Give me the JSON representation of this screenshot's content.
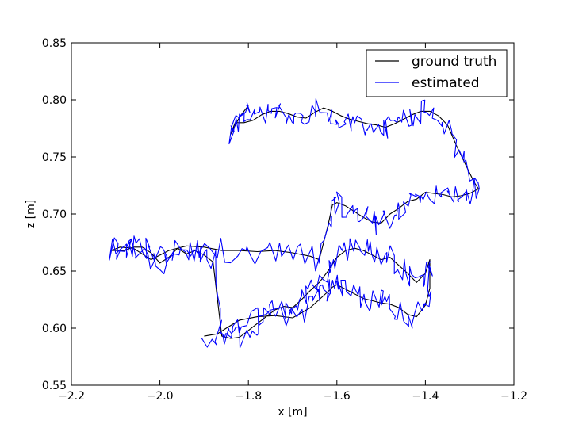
{
  "chart_data": {
    "type": "line",
    "title": "",
    "xlabel": "x [m]",
    "ylabel": "z [m]",
    "xlim": [
      -2.2,
      -1.2
    ],
    "ylim": [
      0.55,
      0.85
    ],
    "xticks": [
      -2.2,
      -2.0,
      -1.8,
      -1.6,
      -1.4,
      -1.2
    ],
    "yticks": [
      0.55,
      0.6,
      0.65,
      0.7,
      0.75,
      0.8,
      0.85
    ],
    "xtick_labels": [
      "−2.2",
      "−2.0",
      "−1.8",
      "−1.6",
      "−1.4",
      "−1.2"
    ],
    "ytick_labels": [
      "0.55",
      "0.60",
      "0.65",
      "0.70",
      "0.75",
      "0.80",
      "0.85"
    ],
    "grid": false,
    "legend_position": "top-right",
    "series": [
      {
        "name": "ground truth",
        "color": "#000000",
        "noise": 0,
        "x": [
          -1.9,
          -1.87,
          -1.85,
          -1.82,
          -1.78,
          -1.74,
          -1.7,
          -1.66,
          -1.64,
          -1.62,
          -1.61,
          -1.6,
          -1.58,
          -1.56,
          -1.54,
          -1.52,
          -1.5,
          -1.48,
          -1.46,
          -1.44,
          -1.42,
          -1.4,
          -1.39,
          -1.39,
          -1.4,
          -1.42,
          -1.44,
          -1.46,
          -1.48,
          -1.5,
          -1.52,
          -1.54,
          -1.56,
          -1.58,
          -1.6,
          -1.62,
          -1.64,
          -1.66,
          -1.68,
          -1.7,
          -1.72,
          -1.74,
          -1.76,
          -1.78,
          -1.8,
          -1.82,
          -1.84,
          -1.86,
          -1.88,
          -1.9,
          -1.92,
          -1.94,
          -1.96,
          -1.98,
          -2.0,
          -2.02,
          -2.04,
          -2.06,
          -2.08,
          -2.11,
          -2.09,
          -2.06,
          -2.02,
          -1.98,
          -1.94,
          -1.9,
          -1.86,
          -1.82,
          -1.78,
          -1.74,
          -1.7,
          -1.66,
          -1.64,
          -1.62,
          -1.61,
          -1.6,
          -1.58,
          -1.56,
          -1.54,
          -1.52,
          -1.5,
          -1.48,
          -1.46,
          -1.44,
          -1.42,
          -1.4,
          -1.38,
          -1.36,
          -1.34,
          -1.32,
          -1.3,
          -1.28,
          -1.29,
          -1.31,
          -1.33,
          -1.35,
          -1.37,
          -1.39,
          -1.41,
          -1.43,
          -1.45,
          -1.47,
          -1.49,
          -1.51,
          -1.53,
          -1.55,
          -1.57,
          -1.59,
          -1.61,
          -1.63,
          -1.65,
          -1.67,
          -1.69,
          -1.71,
          -1.73,
          -1.75,
          -1.77,
          -1.79,
          -1.81,
          -1.83,
          -1.84,
          -1.82,
          -1.8
        ],
        "y": [
          0.593,
          0.595,
          0.6,
          0.607,
          0.61,
          0.611,
          0.609,
          0.618,
          0.625,
          0.632,
          0.636,
          0.638,
          0.634,
          0.63,
          0.626,
          0.624,
          0.622,
          0.621,
          0.618,
          0.612,
          0.61,
          0.62,
          0.635,
          0.66,
          0.648,
          0.64,
          0.648,
          0.655,
          0.662,
          0.66,
          0.664,
          0.668,
          0.67,
          0.668,
          0.662,
          0.65,
          0.64,
          0.633,
          0.625,
          0.618,
          0.619,
          0.616,
          0.61,
          0.604,
          0.598,
          0.592,
          0.591,
          0.593,
          0.658,
          0.664,
          0.668,
          0.665,
          0.67,
          0.662,
          0.657,
          0.666,
          0.671,
          0.671,
          0.668,
          0.668,
          0.671,
          0.67,
          0.66,
          0.668,
          0.672,
          0.671,
          0.668,
          0.668,
          0.667,
          0.668,
          0.666,
          0.663,
          0.66,
          0.69,
          0.708,
          0.71,
          0.707,
          0.702,
          0.697,
          0.693,
          0.692,
          0.7,
          0.705,
          0.711,
          0.713,
          0.719,
          0.718,
          0.717,
          0.715,
          0.716,
          0.718,
          0.722,
          0.728,
          0.744,
          0.76,
          0.778,
          0.786,
          0.79,
          0.79,
          0.787,
          0.783,
          0.779,
          0.776,
          0.778,
          0.779,
          0.781,
          0.783,
          0.786,
          0.79,
          0.793,
          0.789,
          0.784,
          0.785,
          0.788,
          0.79,
          0.79,
          0.787,
          0.782,
          0.78,
          0.78,
          0.77,
          0.785,
          0.795
        ]
      },
      {
        "name": "estimated",
        "color": "#0000ff",
        "noise": 1,
        "x": [
          -1.9,
          -1.87,
          -1.85,
          -1.82,
          -1.78,
          -1.74,
          -1.7,
          -1.66,
          -1.64,
          -1.62,
          -1.61,
          -1.6,
          -1.58,
          -1.56,
          -1.54,
          -1.52,
          -1.5,
          -1.48,
          -1.46,
          -1.44,
          -1.42,
          -1.4,
          -1.39,
          -1.39,
          -1.4,
          -1.42,
          -1.44,
          -1.46,
          -1.48,
          -1.5,
          -1.52,
          -1.54,
          -1.56,
          -1.58,
          -1.6,
          -1.62,
          -1.64,
          -1.66,
          -1.68,
          -1.7,
          -1.72,
          -1.74,
          -1.76,
          -1.78,
          -1.8,
          -1.82,
          -1.84,
          -1.86,
          -1.88,
          -1.9,
          -1.92,
          -1.94,
          -1.96,
          -1.98,
          -2.0,
          -2.02,
          -2.04,
          -2.06,
          -2.08,
          -2.11,
          -2.09,
          -2.06,
          -2.02,
          -1.98,
          -1.94,
          -1.9,
          -1.86,
          -1.82,
          -1.78,
          -1.74,
          -1.7,
          -1.66,
          -1.64,
          -1.62,
          -1.61,
          -1.6,
          -1.58,
          -1.56,
          -1.54,
          -1.52,
          -1.5,
          -1.48,
          -1.46,
          -1.44,
          -1.42,
          -1.4,
          -1.38,
          -1.36,
          -1.34,
          -1.32,
          -1.3,
          -1.28,
          -1.29,
          -1.31,
          -1.33,
          -1.35,
          -1.37,
          -1.39,
          -1.41,
          -1.43,
          -1.45,
          -1.47,
          -1.49,
          -1.51,
          -1.53,
          -1.55,
          -1.57,
          -1.59,
          -1.61,
          -1.63,
          -1.65,
          -1.67,
          -1.69,
          -1.71,
          -1.73,
          -1.75,
          -1.77,
          -1.79,
          -1.81,
          -1.83,
          -1.84,
          -1.82,
          -1.8
        ],
        "y": [
          0.593,
          0.595,
          0.6,
          0.607,
          0.61,
          0.611,
          0.609,
          0.618,
          0.625,
          0.632,
          0.636,
          0.638,
          0.634,
          0.63,
          0.626,
          0.624,
          0.622,
          0.621,
          0.618,
          0.612,
          0.61,
          0.62,
          0.635,
          0.66,
          0.648,
          0.64,
          0.648,
          0.655,
          0.662,
          0.66,
          0.664,
          0.668,
          0.67,
          0.668,
          0.662,
          0.65,
          0.64,
          0.633,
          0.625,
          0.618,
          0.619,
          0.616,
          0.61,
          0.604,
          0.598,
          0.592,
          0.591,
          0.593,
          0.658,
          0.664,
          0.668,
          0.665,
          0.67,
          0.662,
          0.657,
          0.666,
          0.671,
          0.671,
          0.668,
          0.668,
          0.671,
          0.67,
          0.66,
          0.668,
          0.672,
          0.671,
          0.668,
          0.668,
          0.667,
          0.668,
          0.666,
          0.663,
          0.66,
          0.69,
          0.708,
          0.71,
          0.707,
          0.702,
          0.697,
          0.693,
          0.692,
          0.7,
          0.705,
          0.711,
          0.713,
          0.719,
          0.718,
          0.717,
          0.715,
          0.716,
          0.718,
          0.722,
          0.728,
          0.744,
          0.76,
          0.778,
          0.786,
          0.79,
          0.79,
          0.787,
          0.783,
          0.779,
          0.776,
          0.778,
          0.779,
          0.781,
          0.783,
          0.786,
          0.79,
          0.793,
          0.789,
          0.784,
          0.785,
          0.788,
          0.79,
          0.79,
          0.787,
          0.782,
          0.78,
          0.78,
          0.77,
          0.785,
          0.795
        ]
      }
    ]
  }
}
